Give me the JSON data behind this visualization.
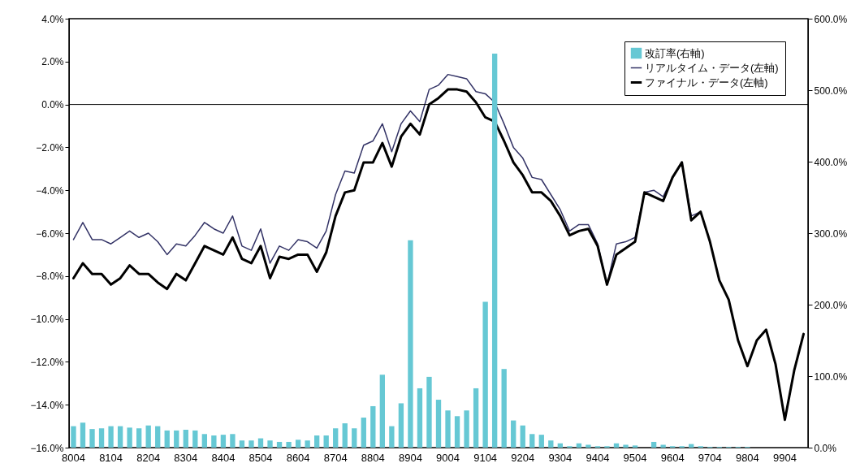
{
  "chart_data": {
    "type": "line",
    "categories": [
      "8004",
      null,
      null,
      null,
      "8104",
      null,
      null,
      null,
      "8204",
      null,
      null,
      null,
      "8304",
      null,
      null,
      null,
      "8404",
      null,
      null,
      null,
      "8504",
      null,
      null,
      null,
      "8604",
      null,
      null,
      null,
      "8704",
      null,
      null,
      null,
      "8804",
      null,
      null,
      null,
      "8904",
      null,
      null,
      null,
      "9004",
      null,
      null,
      null,
      "9104",
      null,
      null,
      null,
      "9204",
      null,
      null,
      null,
      "9304",
      null,
      null,
      null,
      "9404",
      null,
      null,
      null,
      "9504",
      null,
      null,
      null,
      "9604",
      null,
      null,
      null,
      "9704",
      null,
      null,
      null,
      "9804",
      null,
      null,
      null,
      "9904",
      null,
      null
    ],
    "series": [
      {
        "name": "改訂率(右軸)",
        "type": "bar",
        "axis": "y2",
        "color": "#66c8d4",
        "values": [
          30,
          35,
          26,
          27,
          30,
          30,
          28,
          27,
          31,
          30,
          24,
          24,
          25,
          24,
          19,
          17,
          18,
          19,
          10,
          10,
          13,
          10,
          8,
          8,
          11,
          10,
          17,
          17,
          27,
          34,
          27,
          42,
          58,
          102,
          30,
          62,
          290,
          83,
          99,
          67,
          52,
          44,
          52,
          83,
          204,
          551,
          110,
          38,
          31,
          19,
          18,
          10,
          6,
          2,
          6,
          4,
          2,
          2,
          6,
          4,
          3,
          0,
          8,
          4,
          2,
          2,
          5,
          2,
          1,
          1,
          1,
          1,
          1,
          null,
          null,
          null,
          null,
          null,
          null
        ]
      },
      {
        "name": "リアルタイム・データ(左軸)",
        "color": "#333366",
        "values": [
          -6.3,
          -5.5,
          -6.3,
          -6.3,
          -6.5,
          -6.2,
          -5.9,
          -6.2,
          -6.0,
          -6.4,
          -7.0,
          -6.5,
          -6.6,
          -6.1,
          -5.5,
          -5.8,
          -6.0,
          -5.2,
          -6.6,
          -6.8,
          -5.8,
          -7.4,
          -6.6,
          -6.8,
          -6.3,
          -6.4,
          -6.7,
          -5.9,
          -4.2,
          -3.1,
          -3.2,
          -1.9,
          -1.7,
          -0.9,
          -2.2,
          -0.9,
          -0.3,
          -0.8,
          0.7,
          0.9,
          1.4,
          1.3,
          1.2,
          0.6,
          0.5,
          0.1,
          -0.9,
          -2.0,
          -2.5,
          -3.4,
          -3.5,
          -4.2,
          -4.9,
          -5.9,
          -5.6,
          -5.6,
          -6.5,
          -8.4,
          -6.5,
          -6.4,
          -6.2,
          -4.1,
          -4.0,
          -4.3,
          -3.4,
          -2.7,
          -5.2,
          -5.0,
          null,
          null,
          null,
          null,
          null,
          null,
          null,
          null,
          null,
          null,
          null
        ]
      },
      {
        "name": "ファイナル・データ(左軸)",
        "color": "#000000",
        "values": [
          -8.1,
          -7.4,
          -7.9,
          -7.9,
          -8.4,
          -8.1,
          -7.5,
          -7.9,
          -7.9,
          -8.3,
          -8.6,
          -7.9,
          -8.2,
          -7.4,
          -6.6,
          -6.8,
          -7.0,
          -6.2,
          -7.2,
          -7.4,
          -6.6,
          -8.1,
          -7.1,
          -7.2,
          -7.0,
          -7.0,
          -7.8,
          -6.9,
          -5.2,
          -4.1,
          -4.0,
          -2.7,
          -2.7,
          -1.8,
          -2.9,
          -1.5,
          -0.9,
          -1.4,
          0.0,
          0.3,
          0.7,
          0.7,
          0.6,
          0.1,
          -0.6,
          -0.8,
          -1.7,
          -2.7,
          -3.3,
          -4.1,
          -4.1,
          -4.5,
          -5.2,
          -6.1,
          -5.9,
          -5.8,
          -6.6,
          -8.4,
          -7.0,
          -6.7,
          -6.4,
          -4.1,
          -4.3,
          -4.5,
          -3.4,
          -2.7,
          -5.4,
          -5.0,
          -6.4,
          -8.2,
          -9.1,
          -11.0,
          -12.2,
          -11.0,
          -10.5,
          -12.1,
          -14.7,
          -12.4,
          -10.7
        ]
      }
    ],
    "ylim": [
      -16,
      4
    ],
    "yticks": [
      {
        "value": -16,
        "label": "−16.0%"
      },
      {
        "value": -14,
        "label": "−14.0%"
      },
      {
        "value": -12,
        "label": "−12.0%"
      },
      {
        "value": -10,
        "label": "−10.0%"
      },
      {
        "value": -8,
        "label": "−8.0%"
      },
      {
        "value": -6,
        "label": "−6.0%"
      },
      {
        "value": -4,
        "label": "−4.0%"
      },
      {
        "value": -2,
        "label": "−2.0%"
      },
      {
        "value": 0,
        "label": "0.0%"
      },
      {
        "value": 2,
        "label": "2.0%"
      },
      {
        "value": 4,
        "label": "4.0%"
      }
    ],
    "y2lim": [
      0,
      600
    ],
    "y2ticks": [
      {
        "value": 0,
        "label": "0.0%"
      },
      {
        "value": 100,
        "label": "100.0%"
      },
      {
        "value": 200,
        "label": "200.0%"
      },
      {
        "value": 300,
        "label": "300.0%"
      },
      {
        "value": 400,
        "label": "400.0%"
      },
      {
        "value": 500,
        "label": "500.0%"
      },
      {
        "value": 600,
        "label": "600.0%"
      }
    ],
    "ref_lines": [
      {
        "axis": "y",
        "value": 0
      }
    ],
    "legend": "top right"
  }
}
